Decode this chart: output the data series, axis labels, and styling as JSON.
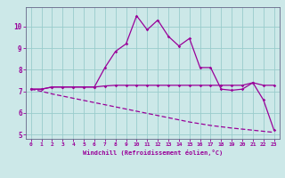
{
  "xlabel": "Windchill (Refroidissement éolien,°C)",
  "x_values": [
    0,
    1,
    2,
    3,
    4,
    5,
    6,
    7,
    8,
    9,
    10,
    11,
    12,
    13,
    14,
    15,
    16,
    17,
    18,
    19,
    20,
    21,
    22,
    23
  ],
  "line_jagged": [
    7.1,
    7.1,
    7.2,
    7.2,
    7.2,
    7.2,
    7.2,
    8.1,
    8.85,
    9.2,
    10.5,
    9.85,
    10.3,
    9.55,
    9.1,
    9.45,
    8.1,
    8.1,
    7.1,
    7.05,
    7.1,
    7.4,
    6.6,
    5.2
  ],
  "line_flat": [
    7.1,
    7.1,
    7.2,
    7.2,
    7.2,
    7.2,
    7.2,
    7.25,
    7.28,
    7.28,
    7.28,
    7.28,
    7.28,
    7.28,
    7.28,
    7.28,
    7.28,
    7.28,
    7.28,
    7.28,
    7.28,
    7.4,
    7.28,
    7.28
  ],
  "line_diag": [
    7.1,
    7.0,
    6.88,
    6.78,
    6.68,
    6.58,
    6.48,
    6.38,
    6.28,
    6.18,
    6.08,
    5.98,
    5.88,
    5.78,
    5.68,
    5.58,
    5.5,
    5.42,
    5.36,
    5.3,
    5.25,
    5.2,
    5.15,
    5.1
  ],
  "bg_color": "#cce8e8",
  "grid_color": "#99cccc",
  "line_color": "#990099",
  "ylim": [
    4.8,
    10.9
  ],
  "yticks": [
    5,
    6,
    7,
    8,
    9,
    10
  ],
  "xlim": [
    -0.5,
    23.5
  ],
  "xticks": [
    0,
    1,
    2,
    3,
    4,
    5,
    6,
    7,
    8,
    9,
    10,
    11,
    12,
    13,
    14,
    15,
    16,
    17,
    18,
    19,
    20,
    21,
    22,
    23
  ]
}
